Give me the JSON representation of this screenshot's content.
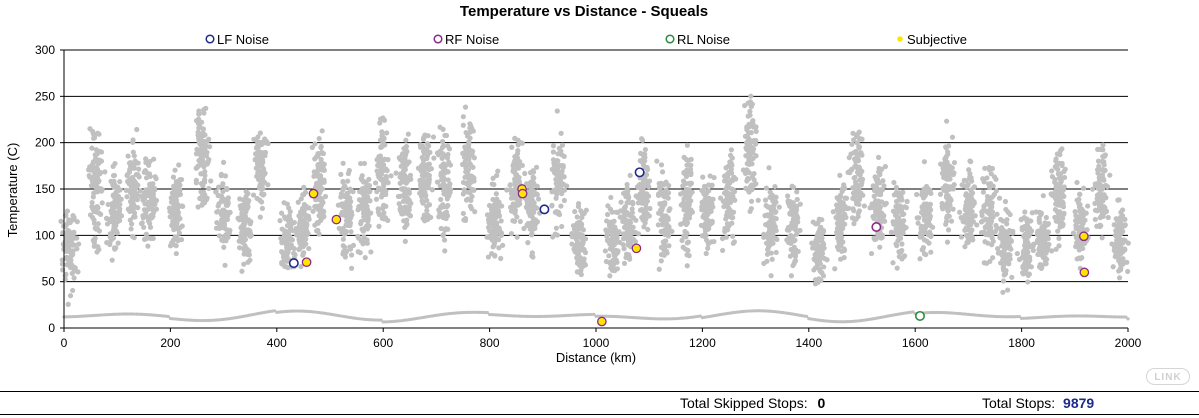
{
  "chart_data": {
    "type": "scatter",
    "title": "Temperature vs Distance - Squeals",
    "xlabel": "Distance (km)",
    "ylabel": "Temperature (C)",
    "xlim": [
      0,
      2000
    ],
    "ylim": [
      0,
      300
    ],
    "xticks": [
      "0",
      "200",
      "400",
      "600",
      "800",
      "1000",
      "1200",
      "1400",
      "1600",
      "1800",
      "2000"
    ],
    "yticks": [
      "0",
      "50",
      "100",
      "150",
      "200",
      "250",
      "300"
    ],
    "grid": "horizontal",
    "legend_position": "top",
    "legend": [
      {
        "name": "LF Noise",
        "marker": "open-circle",
        "color": "#1f2a8a"
      },
      {
        "name": "RF Noise",
        "marker": "open-circle",
        "color": "#8b2a8b"
      },
      {
        "name": "RL Noise",
        "marker": "open-circle",
        "color": "#2e8b3e"
      },
      {
        "name": "Subjective",
        "marker": "dot",
        "color": "#ffe600"
      }
    ],
    "background_series": {
      "color": "#c0c0c0",
      "clusters": [
        [
          10,
          85,
          40
        ],
        [
          60,
          150,
          55
        ],
        [
          95,
          125,
          45
        ],
        [
          130,
          150,
          45
        ],
        [
          160,
          140,
          50
        ],
        [
          210,
          130,
          45
        ],
        [
          260,
          185,
          55
        ],
        [
          300,
          120,
          45
        ],
        [
          340,
          110,
          40
        ],
        [
          370,
          175,
          40
        ],
        [
          420,
          95,
          35
        ],
        [
          450,
          110,
          35
        ],
        [
          480,
          150,
          50
        ],
        [
          530,
          125,
          45
        ],
        [
          565,
          130,
          40
        ],
        [
          600,
          170,
          55
        ],
        [
          640,
          150,
          55
        ],
        [
          680,
          165,
          50
        ],
        [
          715,
          155,
          55
        ],
        [
          760,
          175,
          50
        ],
        [
          810,
          115,
          40
        ],
        [
          850,
          150,
          45
        ],
        [
          880,
          130,
          40
        ],
        [
          930,
          160,
          55
        ],
        [
          970,
          95,
          40
        ],
        [
          1030,
          95,
          35
        ],
        [
          1060,
          115,
          40
        ],
        [
          1090,
          150,
          45
        ],
        [
          1130,
          120,
          45
        ],
        [
          1170,
          135,
          50
        ],
        [
          1210,
          125,
          40
        ],
        [
          1250,
          140,
          50
        ],
        [
          1290,
          190,
          55
        ],
        [
          1330,
          110,
          40
        ],
        [
          1370,
          110,
          40
        ],
        [
          1420,
          85,
          35
        ],
        [
          1460,
          120,
          40
        ],
        [
          1490,
          165,
          50
        ],
        [
          1530,
          130,
          45
        ],
        [
          1570,
          115,
          40
        ],
        [
          1620,
          120,
          40
        ],
        [
          1660,
          155,
          50
        ],
        [
          1700,
          130,
          45
        ],
        [
          1740,
          125,
          45
        ],
        [
          1770,
          90,
          35
        ],
        [
          1810,
          85,
          35
        ],
        [
          1840,
          95,
          35
        ],
        [
          1870,
          150,
          50
        ],
        [
          1910,
          110,
          40
        ],
        [
          1950,
          150,
          45
        ],
        [
          1985,
          95,
          35
        ]
      ]
    },
    "series": [
      {
        "name": "LF Noise",
        "points": [
          [
            432,
            70
          ],
          [
            1082,
            168
          ],
          [
            903,
            128
          ]
        ]
      },
      {
        "name": "RF Noise",
        "points": [
          [
            1527,
            109
          ]
        ]
      },
      {
        "name": "RL Noise",
        "points": [
          [
            1609,
            13
          ]
        ]
      },
      {
        "name": "Subjective",
        "points": [
          [
            456,
            71
          ],
          [
            469,
            145
          ],
          [
            512,
            117
          ],
          [
            861,
            150
          ],
          [
            862,
            145
          ],
          [
            1076,
            86
          ],
          [
            1011,
            7
          ],
          [
            1917,
            99
          ],
          [
            1918,
            60
          ]
        ]
      }
    ]
  },
  "footer": {
    "skipped_label": "Total Skipped Stops:",
    "skipped_value": "0",
    "total_label": "Total Stops:",
    "total_value": "9879",
    "badge": "LINK"
  }
}
